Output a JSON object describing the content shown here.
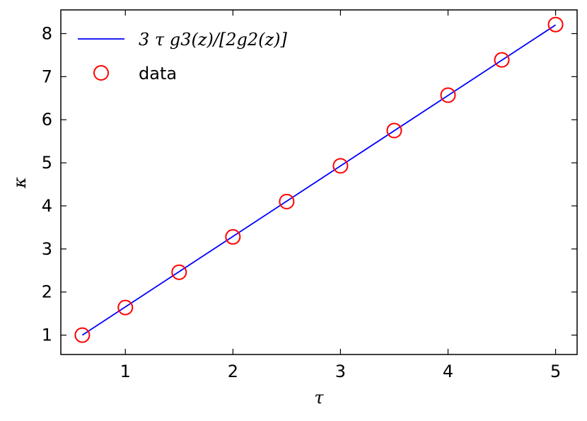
{
  "chart_data": {
    "type": "line",
    "xlabel": "τ",
    "ylabel": "κ",
    "xlim": [
      0.4,
      5.2
    ],
    "ylim": [
      0.55,
      8.55
    ],
    "xticks": [
      1,
      2,
      3,
      4,
      5
    ],
    "yticks": [
      1,
      2,
      3,
      4,
      5,
      6,
      7,
      8
    ],
    "grid": false,
    "legend_position": "top-left",
    "series": [
      {
        "name": "3 τ g3(z)/[2g2(z)]",
        "kind": "line",
        "color": "#0000ff",
        "x": [
          0.6,
          5.0
        ],
        "y": [
          1.0,
          8.2
        ]
      },
      {
        "name": "data",
        "kind": "scatter",
        "marker": "circle-open",
        "color": "#ff0000",
        "x": [
          0.6,
          1.0,
          1.5,
          2.0,
          2.5,
          3.0,
          3.5,
          4.0,
          4.5,
          5.0
        ],
        "y": [
          1.0,
          1.64,
          2.46,
          3.28,
          4.1,
          4.93,
          5.75,
          6.57,
          7.39,
          8.21
        ]
      }
    ]
  }
}
